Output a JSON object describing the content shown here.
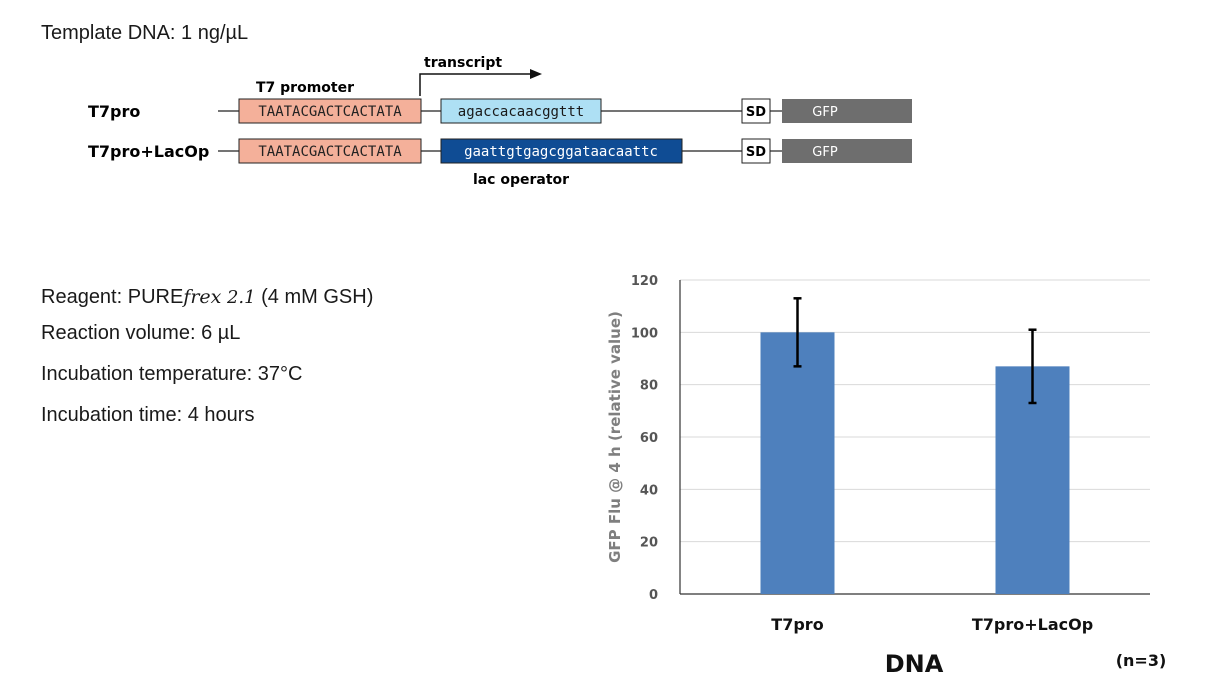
{
  "template_dna": "Template DNA: 1 ng/µL",
  "diagram": {
    "promoter_label": "T7 promoter",
    "transcript_label": "transcript",
    "lac_operator_label": "lac operator",
    "constructs": [
      {
        "name": "T7pro",
        "promoter_seq": "TAATACGACTCACTATA",
        "insert_seq": "agaccacaacggttt",
        "insert_color": "#aee0f4",
        "insert_text_color": "#1a1a1a",
        "sd": "SD",
        "gene": "GFP"
      },
      {
        "name": "T7pro+LacOp",
        "promoter_seq": "TAATACGACTCACTATA",
        "insert_seq": "gaattgtgagcggataacaattc",
        "insert_color": "#0f4c94",
        "insert_text_color": "#ffffff",
        "sd": "SD",
        "gene": "GFP"
      }
    ],
    "promoter_color": "#f4b09a",
    "gene_color": "#6e6e6e"
  },
  "conditions": {
    "reagent_prefix": "Reagent: PURE",
    "reagent_italic": "frex",
    "reagent_version": "2.1",
    "reagent_suffix": " (4 mM GSH)",
    "volume": "Reaction volume: 6 µL",
    "temperature": "Incubation temperature: 37°C",
    "time": "Incubation time: 4 hours"
  },
  "chart_data": {
    "type": "bar",
    "categories": [
      "T7pro",
      "T7pro+LacOp"
    ],
    "values": [
      100,
      87
    ],
    "errors": [
      13,
      14
    ],
    "bar_color": "#4e80bd",
    "xlabel": "DNA",
    "ylabel": "GFP Flu @ 4 h (relative value)",
    "ylim": [
      0,
      120
    ],
    "yticks": [
      0,
      20,
      40,
      60,
      80,
      100,
      120
    ],
    "grid": true,
    "note": "(n=3)"
  }
}
